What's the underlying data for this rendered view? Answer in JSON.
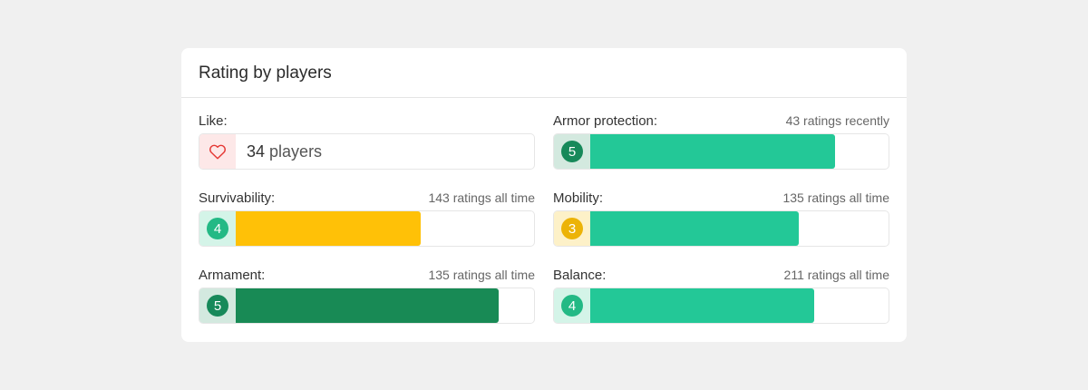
{
  "card": {
    "title": "Rating by players"
  },
  "like": {
    "label": "Like:",
    "count": "34",
    "unit": "players",
    "icon": "heart-icon"
  },
  "ratings": [
    {
      "id": "armor-protection",
      "label": "Armor protection:",
      "meta": "43 ratings recently",
      "score": "5",
      "fill_fraction": 0.82,
      "fill_color": "#23c897",
      "badge_color": "#17895a",
      "badge_bg": "#d3e9df"
    },
    {
      "id": "survivability",
      "label": "Survivability:",
      "meta": "143 ratings all time",
      "score": "4",
      "fill_fraction": 0.62,
      "fill_color": "#ffc107",
      "badge_color": "#23b985",
      "badge_bg": "#d4f4e8"
    },
    {
      "id": "mobility",
      "label": "Mobility:",
      "meta": "135 ratings all time",
      "score": "3",
      "fill_fraction": 0.7,
      "fill_color": "#23c897",
      "badge_color": "#ecb307",
      "badge_bg": "#fdf1c8"
    },
    {
      "id": "armament",
      "label": "Armament:",
      "meta": "135 ratings all time",
      "score": "5",
      "fill_fraction": 0.88,
      "fill_color": "#188a55",
      "badge_color": "#17895a",
      "badge_bg": "#d3e9df"
    },
    {
      "id": "balance",
      "label": "Balance:",
      "meta": "211 ratings all time",
      "score": "4",
      "fill_fraction": 0.75,
      "fill_color": "#23c897",
      "badge_color": "#23b985",
      "badge_bg": "#d4f4e8"
    }
  ]
}
